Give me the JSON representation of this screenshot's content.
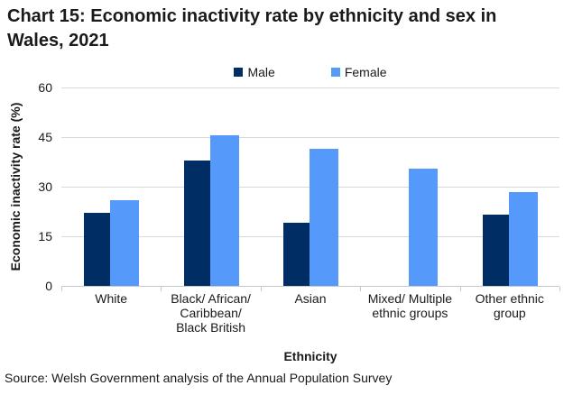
{
  "title": "Chart 15: Economic inactivity rate by ethnicity and sex in Wales, 2021",
  "source": "Source: Welsh Government analysis of the Annual Population Survey",
  "chart_data": {
    "type": "bar",
    "title": "Chart 15: Economic inactivity rate by ethnicity and sex in Wales, 2021",
    "xlabel": "Ethnicity",
    "ylabel": "Economic inactivity rate (%)",
    "ylim": [
      0,
      60
    ],
    "yticks": [
      0,
      15,
      30,
      45,
      60
    ],
    "grid": "horizontal-only",
    "legend_position": "top-center",
    "categories": [
      "White",
      "Black/ African/ Caribbean/ Black British",
      "Asian",
      "Mixed/ Multiple ethnic groups",
      "Other ethnic group"
    ],
    "category_label_lines": [
      [
        "White"
      ],
      [
        "Black/ African/",
        "Caribbean/",
        "Black British"
      ],
      [
        "Asian"
      ],
      [
        "Mixed/ Multiple",
        "ethnic groups"
      ],
      [
        "Other ethnic",
        "group"
      ]
    ],
    "series": [
      {
        "name": "Male",
        "color": "#002D64",
        "values": [
          22,
          38,
          19,
          null,
          21.5
        ]
      },
      {
        "name": "Female",
        "color": "#559AFA",
        "values": [
          26,
          45.5,
          41.5,
          35.5,
          28.5
        ]
      }
    ],
    "colors": {
      "male": "#002D64",
      "female": "#559AFA",
      "gridline": "#D9D9D9",
      "axis": "#C8C8C8",
      "text": "#1A1A1A",
      "background": "#FFFFFF"
    }
  }
}
